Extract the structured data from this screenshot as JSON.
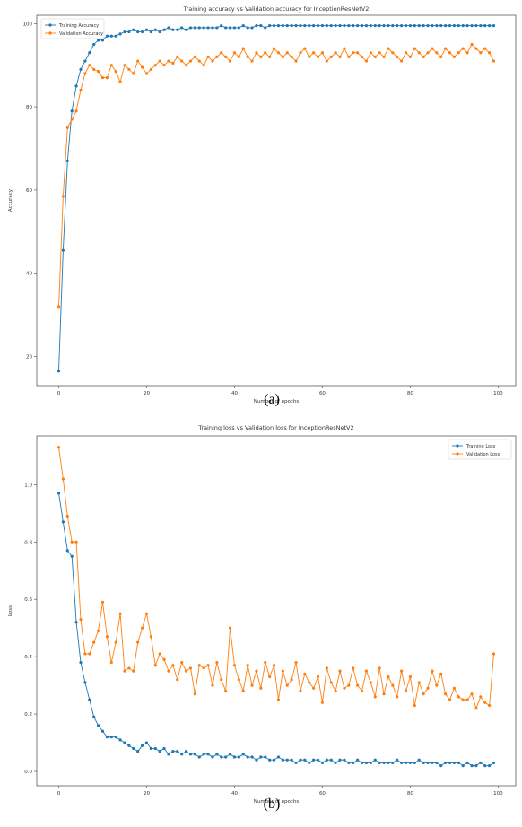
{
  "colors": {
    "train": "#1f77b4",
    "val": "#ff7f0e"
  },
  "chart_data": [
    {
      "type": "line",
      "caption": "(a)",
      "title": "Training accuracy vs Validation accuracy for InceptionResNetV2",
      "xlabel": "Number of epochs",
      "ylabel": "Accuracy",
      "xlim": [
        -5,
        104
      ],
      "ylim": [
        13,
        102
      ],
      "xticks": [
        0,
        20,
        40,
        60,
        80,
        100
      ],
      "yticks": [
        20,
        40,
        60,
        80,
        100
      ],
      "legend_loc": "upper-left",
      "series": [
        {
          "name": "Training Accuracy",
          "color_key": "train",
          "values": [
            16.5,
            45.5,
            67,
            79,
            85,
            89,
            91,
            93,
            95,
            96,
            96,
            97,
            97,
            97,
            97.5,
            98,
            98,
            98.5,
            98,
            98,
            98.5,
            98,
            98.5,
            98,
            98.5,
            99,
            98.5,
            98.5,
            99,
            98.5,
            99,
            99,
            99,
            99,
            99,
            99,
            99,
            99.5,
            99,
            99,
            99,
            99,
            99.5,
            99,
            99,
            99.5,
            99.5,
            99,
            99.5,
            99.5,
            99.5,
            99.5,
            99.5,
            99.5,
            99.5,
            99.5,
            99.5,
            99.5,
            99.5,
            99.5,
            99.5,
            99.5,
            99.5,
            99.5,
            99.5,
            99.5,
            99.5,
            99.5,
            99.5,
            99.5,
            99.5,
            99.5,
            99.5,
            99.5,
            99.5,
            99.5,
            99.5,
            99.5,
            99.5,
            99.5,
            99.5,
            99.5,
            99.5,
            99.5,
            99.5,
            99.5,
            99.5,
            99.5,
            99.5,
            99.5,
            99.5,
            99.5,
            99.5,
            99.5,
            99.5,
            99.5,
            99.5,
            99.5,
            99.5,
            99.5
          ]
        },
        {
          "name": "Validation Accuracy",
          "color_key": "val",
          "values": [
            32,
            58.5,
            75,
            77,
            79,
            84,
            88,
            90,
            89,
            88.5,
            87,
            87,
            90,
            88.5,
            86,
            90,
            89,
            88,
            91,
            89.5,
            88,
            89,
            90,
            91,
            90,
            91,
            90.5,
            92,
            91,
            90,
            91,
            92,
            91,
            90,
            92,
            91,
            92,
            93,
            92,
            91,
            93,
            92,
            94,
            92,
            91,
            93,
            92,
            93,
            92,
            94,
            93,
            92,
            93,
            92,
            91,
            93,
            94,
            92,
            93,
            92,
            93,
            91,
            92,
            93,
            92,
            94,
            92,
            93,
            93,
            92,
            91,
            93,
            92,
            93,
            92,
            94,
            93,
            92,
            91,
            93,
            92,
            94,
            93,
            92,
            93,
            94,
            93,
            92,
            94,
            93,
            92,
            93,
            94,
            93,
            95,
            94,
            93,
            94,
            93,
            91
          ]
        }
      ]
    },
    {
      "type": "line",
      "caption": "(b)",
      "title": "Training loss vs Validation loss for InceptionResNetV2",
      "xlabel": "Number of epochs",
      "ylabel": "Loss",
      "xlim": [
        -5,
        104
      ],
      "ylim": [
        -0.05,
        1.17
      ],
      "xticks": [
        0,
        20,
        40,
        60,
        80,
        100
      ],
      "yticks": [
        0.0,
        0.2,
        0.4,
        0.6,
        0.8,
        1.0
      ],
      "ytick_labels": [
        "0.0",
        "0.2",
        "0.4",
        "0.6",
        "0.8",
        "1.0"
      ],
      "legend_loc": "upper-right",
      "series": [
        {
          "name": "Training Loss",
          "color_key": "train",
          "values": [
            0.97,
            0.87,
            0.77,
            0.75,
            0.52,
            0.38,
            0.31,
            0.25,
            0.19,
            0.16,
            0.14,
            0.12,
            0.12,
            0.12,
            0.11,
            0.1,
            0.09,
            0.08,
            0.07,
            0.09,
            0.1,
            0.08,
            0.08,
            0.07,
            0.08,
            0.06,
            0.07,
            0.07,
            0.06,
            0.07,
            0.06,
            0.06,
            0.05,
            0.06,
            0.06,
            0.05,
            0.06,
            0.05,
            0.05,
            0.06,
            0.05,
            0.05,
            0.06,
            0.05,
            0.05,
            0.04,
            0.05,
            0.05,
            0.04,
            0.04,
            0.05,
            0.04,
            0.04,
            0.04,
            0.03,
            0.04,
            0.04,
            0.03,
            0.04,
            0.04,
            0.03,
            0.04,
            0.04,
            0.03,
            0.04,
            0.04,
            0.03,
            0.03,
            0.04,
            0.03,
            0.03,
            0.03,
            0.04,
            0.03,
            0.03,
            0.03,
            0.03,
            0.04,
            0.03,
            0.03,
            0.03,
            0.03,
            0.04,
            0.03,
            0.03,
            0.03,
            0.03,
            0.02,
            0.03,
            0.03,
            0.03,
            0.03,
            0.02,
            0.03,
            0.02,
            0.02,
            0.03,
            0.02,
            0.02,
            0.03
          ]
        },
        {
          "name": "Validation Loss",
          "color_key": "val",
          "values": [
            1.13,
            1.02,
            0.89,
            0.8,
            0.8,
            0.53,
            0.41,
            0.41,
            0.45,
            0.49,
            0.59,
            0.47,
            0.38,
            0.45,
            0.55,
            0.35,
            0.36,
            0.35,
            0.45,
            0.5,
            0.55,
            0.47,
            0.37,
            0.41,
            0.39,
            0.35,
            0.37,
            0.32,
            0.38,
            0.35,
            0.36,
            0.27,
            0.37,
            0.36,
            0.37,
            0.3,
            0.38,
            0.32,
            0.28,
            0.5,
            0.37,
            0.32,
            0.28,
            0.37,
            0.3,
            0.35,
            0.29,
            0.38,
            0.33,
            0.37,
            0.25,
            0.35,
            0.3,
            0.32,
            0.38,
            0.28,
            0.34,
            0.31,
            0.29,
            0.33,
            0.24,
            0.36,
            0.31,
            0.28,
            0.35,
            0.29,
            0.3,
            0.36,
            0.3,
            0.28,
            0.35,
            0.31,
            0.26,
            0.36,
            0.27,
            0.33,
            0.3,
            0.26,
            0.35,
            0.28,
            0.33,
            0.23,
            0.31,
            0.27,
            0.29,
            0.35,
            0.3,
            0.34,
            0.27,
            0.25,
            0.29,
            0.26,
            0.25,
            0.25,
            0.27,
            0.22,
            0.26,
            0.24,
            0.23,
            0.41
          ]
        }
      ]
    }
  ]
}
